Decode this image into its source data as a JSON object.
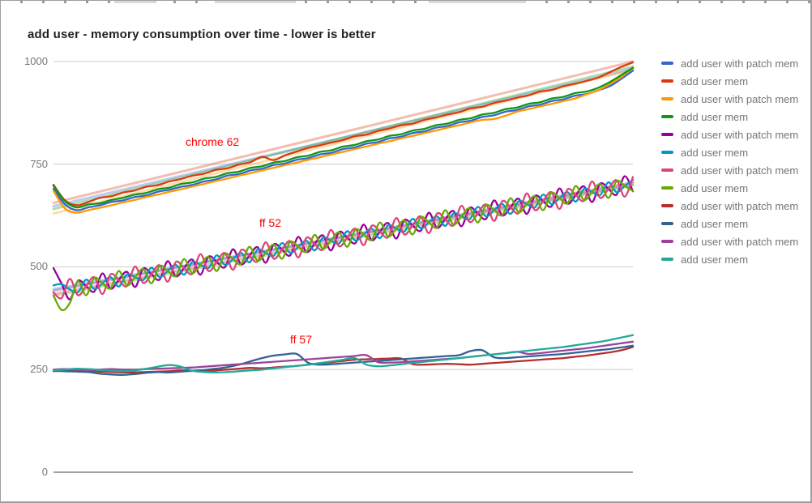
{
  "title": "add user - memory consumption over time - lower is better",
  "axis_labels": [
    "1000",
    "750",
    "500",
    "250",
    "0"
  ],
  "annotations": [
    {
      "text": "chrome 62",
      "color": "#ff0000"
    },
    {
      "text": "ff 52",
      "color": "#ff0000"
    },
    {
      "text": "ff 57",
      "color": "#ff0000"
    }
  ],
  "colors": {
    "gridline": "#cccccc",
    "baseline": "#424242",
    "axis_label_text": "#757575",
    "legend_text": "#757575",
    "annotation_text": "#ff0000",
    "title_text": "#212121"
  },
  "legend": {
    "position": "right",
    "items": [
      {
        "label": "add user with patch mem",
        "color": "#3366cc"
      },
      {
        "label": "add user mem",
        "color": "#dc3912"
      },
      {
        "label": "add user with patch mem",
        "color": "#ff9900"
      },
      {
        "label": "add user mem",
        "color": "#109618"
      },
      {
        "label": "add user with patch mem",
        "color": "#990099"
      },
      {
        "label": "add user mem",
        "color": "#0099c6"
      },
      {
        "label": "add user with patch mem",
        "color": "#dd4477"
      },
      {
        "label": "add user mem",
        "color": "#66aa00"
      },
      {
        "label": "add user with patch mem",
        "color": "#b82e2e"
      },
      {
        "label": "add user mem",
        "color": "#316395"
      },
      {
        "label": "add user with patch mem",
        "color": "#994499"
      },
      {
        "label": "add user mem",
        "color": "#22aa99"
      }
    ]
  },
  "chart_data": {
    "type": "line",
    "title": "add user - memory consumption over time - lower is better",
    "xlabel": "",
    "ylabel": "",
    "ylim": [
      0,
      1000
    ],
    "yticks": [
      0,
      250,
      500,
      750,
      1000
    ],
    "x_range": [
      0,
      100
    ],
    "grid": true,
    "legend_position": "right",
    "group_annotations": [
      "chrome 62",
      "ff 52",
      "ff 57"
    ],
    "series": [
      {
        "name": "add user with patch mem",
        "group": "chrome 62",
        "color": "#3366cc",
        "trend": [
          648,
          982
        ],
        "values": [
          690,
          652,
          638,
          645,
          650,
          658,
          662,
          670,
          674,
          683,
          688,
          695,
          700,
          708,
          713,
          722,
          726,
          735,
          739,
          748,
          752,
          761,
          765,
          774,
          778,
          787,
          791,
          800,
          804,
          813,
          817,
          826,
          830,
          839,
          843,
          852,
          856,
          865,
          869,
          878,
          882,
          891,
          895,
          904,
          908,
          917,
          921,
          930,
          940,
          958,
          978
        ]
      },
      {
        "name": "add user mem",
        "group": "chrome 62",
        "color": "#dc3912",
        "trend": [
          656,
          1000
        ],
        "values": [
          700,
          662,
          650,
          658,
          668,
          672,
          681,
          686,
          695,
          699,
          708,
          714,
          722,
          727,
          736,
          740,
          749,
          755,
          768,
          760,
          772,
          781,
          790,
          796,
          803,
          809,
          818,
          822,
          831,
          837,
          845,
          849,
          858,
          864,
          871,
          877,
          886,
          890,
          899,
          905,
          912,
          918,
          927,
          931,
          940,
          946,
          953,
          961,
          974,
          987,
          998
        ]
      },
      {
        "name": "add user with patch mem",
        "group": "chrome 62",
        "color": "#ff9900",
        "trend": [
          630,
          980
        ],
        "values": [
          685,
          642,
          632,
          638,
          644,
          650,
          657,
          663,
          670,
          676,
          683,
          689,
          696,
          702,
          709,
          715,
          722,
          728,
          735,
          741,
          748,
          754,
          761,
          767,
          774,
          780,
          787,
          793,
          800,
          806,
          813,
          819,
          826,
          832,
          839,
          845,
          852,
          858,
          860,
          868,
          878,
          884,
          891,
          897,
          904,
          910,
          920,
          930,
          945,
          962,
          985
        ]
      },
      {
        "name": "add user mem",
        "group": "chrome 62",
        "color": "#109618",
        "trend": [
          641,
          988
        ],
        "values": [
          697,
          660,
          645,
          652,
          655,
          663,
          668,
          676,
          680,
          689,
          693,
          702,
          706,
          715,
          719,
          728,
          732,
          741,
          745,
          754,
          758,
          767,
          771,
          780,
          784,
          793,
          797,
          806,
          810,
          819,
          823,
          832,
          836,
          845,
          849,
          858,
          862,
          871,
          875,
          884,
          888,
          897,
          901,
          910,
          914,
          923,
          927,
          936,
          950,
          967,
          985
        ]
      },
      {
        "name": "add user with patch mem",
        "group": "ff 52",
        "color": "#990099",
        "trend": [
          442,
          706
        ],
        "values": [
          497,
          459,
          421,
          466,
          453,
          440,
          484,
          447,
          468,
          488,
          451,
          496,
          482,
          469,
          514,
          477,
          497,
          518,
          481,
          525,
          512,
          499,
          543,
          506,
          527,
          548,
          510,
          555,
          542,
          528,
          573,
          536,
          556,
          577,
          540,
          585,
          571,
          558,
          603,
          565,
          586,
          607,
          569,
          614,
          601,
          588,
          632,
          595,
          616,
          636,
          599,
          644,
          630,
          617,
          662,
          625,
          645,
          666,
          629,
          673,
          660,
          647,
          691,
          654,
          675,
          696,
          658,
          703,
          690,
          676,
          721,
          684
        ]
      },
      {
        "name": "add user mem",
        "group": "ff 52",
        "color": "#0099c6",
        "trend": [
          446,
          700
        ],
        "values": [
          455,
          458,
          445,
          438,
          469,
          446,
          460,
          475,
          452,
          482,
          475,
          468,
          498,
          475,
          490,
          505,
          481,
          512,
          505,
          497,
          528,
          505,
          519,
          534,
          511,
          542,
          534,
          527,
          558,
          534,
          549,
          564,
          540,
          571,
          564,
          557,
          587,
          564,
          579,
          593,
          570,
          601,
          593,
          586,
          617,
          594,
          608,
          623,
          600,
          630,
          623,
          616,
          646,
          623,
          638,
          653,
          629,
          660,
          653,
          645,
          676,
          653,
          667,
          682,
          659,
          690,
          682,
          675,
          706,
          682,
          697,
          712
        ]
      },
      {
        "name": "add user with patch mem",
        "group": "ff 52",
        "color": "#dd4477",
        "trend": [
          434,
          703
        ],
        "values": [
          438,
          424,
          471,
          431,
          453,
          475,
          434,
          482,
          468,
          453,
          501,
          461,
          482,
          504,
          464,
          512,
          497,
          483,
          531,
          490,
          512,
          534,
          493,
          541,
          527,
          513,
          560,
          520,
          542,
          563,
          523,
          571,
          556,
          542,
          590,
          550,
          571,
          593,
          553,
          600,
          586,
          572,
          619,
          579,
          601,
          623,
          582,
          630,
          616,
          601,
          649,
          609,
          630,
          652,
          612,
          660,
          645,
          631,
          679,
          638,
          660,
          682,
          641,
          689,
          675,
          661,
          708,
          668,
          690,
          711,
          671,
          719
        ]
      },
      {
        "name": "add user mem",
        "group": "ff 52",
        "color": "#66aa00",
        "trend": [
          430,
          698
        ],
        "values": [
          430,
          395,
          412,
          465,
          431,
          473,
          460,
          448,
          490,
          455,
          475,
          495,
          460,
          502,
          490,
          478,
          519,
          485,
          505,
          524,
          490,
          532,
          519,
          507,
          549,
          515,
          534,
          554,
          520,
          561,
          549,
          537,
          578,
          544,
          564,
          584,
          549,
          591,
          579,
          566,
          608,
          574,
          593,
          613,
          579,
          621,
          608,
          596,
          638,
          603,
          623,
          643,
          608,
          650,
          638,
          626,
          667,
          633,
          653,
          672,
          638,
          680,
          667,
          655,
          697,
          663,
          682,
          702,
          668,
          709,
          697,
          685
        ]
      },
      {
        "name": "add user with patch mem",
        "group": "ff 57",
        "color": "#b82e2e",
        "trend": null,
        "values": [
          246,
          248,
          249,
          247,
          245,
          244,
          243,
          243,
          244,
          245,
          246,
          248,
          247,
          246,
          248,
          250,
          252,
          254,
          253,
          255,
          257,
          259,
          262,
          265,
          268,
          271,
          274,
          275,
          276,
          277,
          277,
          263,
          262,
          263,
          264,
          263,
          262,
          264,
          266,
          268,
          270,
          272,
          274,
          276,
          278,
          281,
          284,
          288,
          292,
          297,
          305
        ]
      },
      {
        "name": "add user mem",
        "group": "ff 57",
        "color": "#316395",
        "trend": null,
        "values": [
          247,
          246,
          245,
          244,
          240,
          238,
          237,
          239,
          242,
          244,
          243,
          245,
          247,
          249,
          252,
          256,
          262,
          270,
          278,
          284,
          287,
          288,
          266,
          262,
          263,
          265,
          267,
          269,
          271,
          273,
          275,
          277,
          279,
          281,
          283,
          285,
          295,
          297,
          280,
          278,
          280,
          282,
          284,
          286,
          288,
          291,
          294,
          297,
          300,
          304,
          308
        ]
      },
      {
        "name": "add user with patch mem",
        "group": "ff 57",
        "color": "#994499",
        "trend": null,
        "values": [
          250,
          251,
          250,
          249,
          250,
          251,
          250,
          250,
          251,
          252,
          253,
          254,
          255,
          257,
          259,
          261,
          263,
          265,
          267,
          269,
          271,
          273,
          275,
          277,
          279,
          281,
          283,
          285,
          268,
          267,
          268,
          270,
          272,
          274,
          276,
          278,
          281,
          284,
          287,
          290,
          293,
          288,
          290,
          293,
          296,
          299,
          302,
          306,
          310,
          314,
          318
        ]
      },
      {
        "name": "add user mem",
        "group": "ff 57",
        "color": "#22aa99",
        "trend": null,
        "values": [
          248,
          250,
          252,
          251,
          249,
          247,
          246,
          248,
          252,
          257,
          261,
          257,
          247,
          244,
          243,
          244,
          246,
          248,
          250,
          253,
          256,
          259,
          262,
          266,
          270,
          274,
          278,
          262,
          258,
          260,
          263,
          266,
          269,
          272,
          275,
          278,
          281,
          284,
          287,
          290,
          293,
          296,
          299,
          302,
          305,
          309,
          313,
          317,
          322,
          328,
          334
        ]
      }
    ]
  }
}
